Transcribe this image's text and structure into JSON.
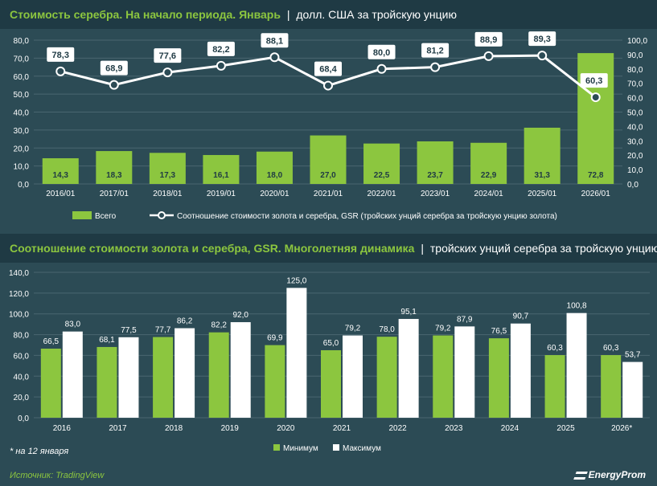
{
  "charts_header": [
    {
      "title": "Стоимость серебра. На начало периода. Январь",
      "separator": "|",
      "unit": "долл. США за тройскую унцию"
    },
    {
      "title": "Соотношение стоимости золота и серебра, GSR. Многолетняя динамика",
      "separator": "|",
      "unit": "тройских унций серебра за тройскую унцию золота"
    }
  ],
  "footnote": "* на 12 января",
  "source": "Источник: TradingView",
  "brand": "EnergyProm",
  "colors": {
    "green": "#8cc63f",
    "white": "#ffffff",
    "axis_text": "#ffffff"
  },
  "chart_data": [
    {
      "type": "bar+line",
      "title": "Стоимость серебра. На начало периода. Январь",
      "categories": [
        "2016/01",
        "2017/01",
        "2018/01",
        "2019/01",
        "2020/01",
        "2021/01",
        "2022/01",
        "2023/01",
        "2024/01",
        "2025/01",
        "2026/01"
      ],
      "series": [
        {
          "name": "Всего",
          "type": "bar",
          "axis": "left",
          "values": [
            14.3,
            18.3,
            17.3,
            16.1,
            18.0,
            27.0,
            22.5,
            23.7,
            22.9,
            31.3,
            72.8
          ],
          "labels": [
            "14,3",
            "18,3",
            "17,3",
            "16,1",
            "18,0",
            "27,0",
            "22,5",
            "23,7",
            "22,9",
            "31,3",
            "72,8"
          ]
        },
        {
          "name": "Соотношение стоимости золота и серебра, GSR (тройских унций серебра за тройскую унцию золота)",
          "type": "line",
          "axis": "right",
          "values": [
            78.3,
            68.9,
            77.6,
            82.2,
            88.1,
            68.4,
            80.0,
            81.2,
            88.9,
            89.3,
            60.3
          ],
          "labels": [
            "78,3",
            "68,9",
            "77,6",
            "82,2",
            "88,1",
            "68,4",
            "80,0",
            "81,2",
            "88,9",
            "89,3",
            "60,3"
          ]
        }
      ],
      "y_left": {
        "lim": [
          0,
          80
        ],
        "ticks": [
          "0,0",
          "10,0",
          "20,0",
          "30,0",
          "40,0",
          "50,0",
          "60,0",
          "70,0",
          "80,0"
        ]
      },
      "y_right": {
        "lim": [
          0,
          100
        ],
        "ticks": [
          "0,0",
          "10,0",
          "20,0",
          "30,0",
          "40,0",
          "50,0",
          "60,0",
          "70,0",
          "80,0",
          "90,0",
          "100,0"
        ]
      },
      "legend": [
        "Всего",
        "Соотношение стоимости золота и серебра, GSR (тройских унций серебра за тройскую унцию золота)"
      ],
      "legend_position": "bottom"
    },
    {
      "type": "bar",
      "title": "Соотношение стоимости золота и серебра, GSR. Многолетняя динамика",
      "categories": [
        "2016",
        "2017",
        "2018",
        "2019",
        "2020",
        "2021",
        "2022",
        "2023",
        "2024",
        "2025",
        "2026*"
      ],
      "series": [
        {
          "name": "Минимум",
          "values": [
            66.5,
            68.1,
            77.7,
            82.2,
            69.9,
            65.0,
            78.0,
            79.2,
            76.5,
            60.3,
            60.3
          ],
          "labels": [
            "66,5",
            "68,1",
            "77,7",
            "82,2",
            "69,9",
            "65,0",
            "78,0",
            "79,2",
            "76,5",
            "60,3",
            "60,3"
          ]
        },
        {
          "name": "Максимум",
          "values": [
            83.0,
            77.5,
            86.2,
            92.0,
            125.0,
            79.2,
            95.1,
            87.9,
            90.7,
            100.8,
            53.7
          ],
          "labels": [
            "83,0",
            "77,5",
            "86,2",
            "92,0",
            "125,0",
            "79,2",
            "95,1",
            "87,9",
            "90,7",
            "100,8",
            "53,7"
          ]
        }
      ],
      "y": {
        "lim": [
          0,
          140
        ],
        "ticks": [
          "0,0",
          "20,0",
          "40,0",
          "60,0",
          "80,0",
          "100,0",
          "120,0",
          "140,0"
        ]
      },
      "legend": [
        "Минимум",
        "Максимум"
      ],
      "legend_position": "bottom"
    }
  ]
}
